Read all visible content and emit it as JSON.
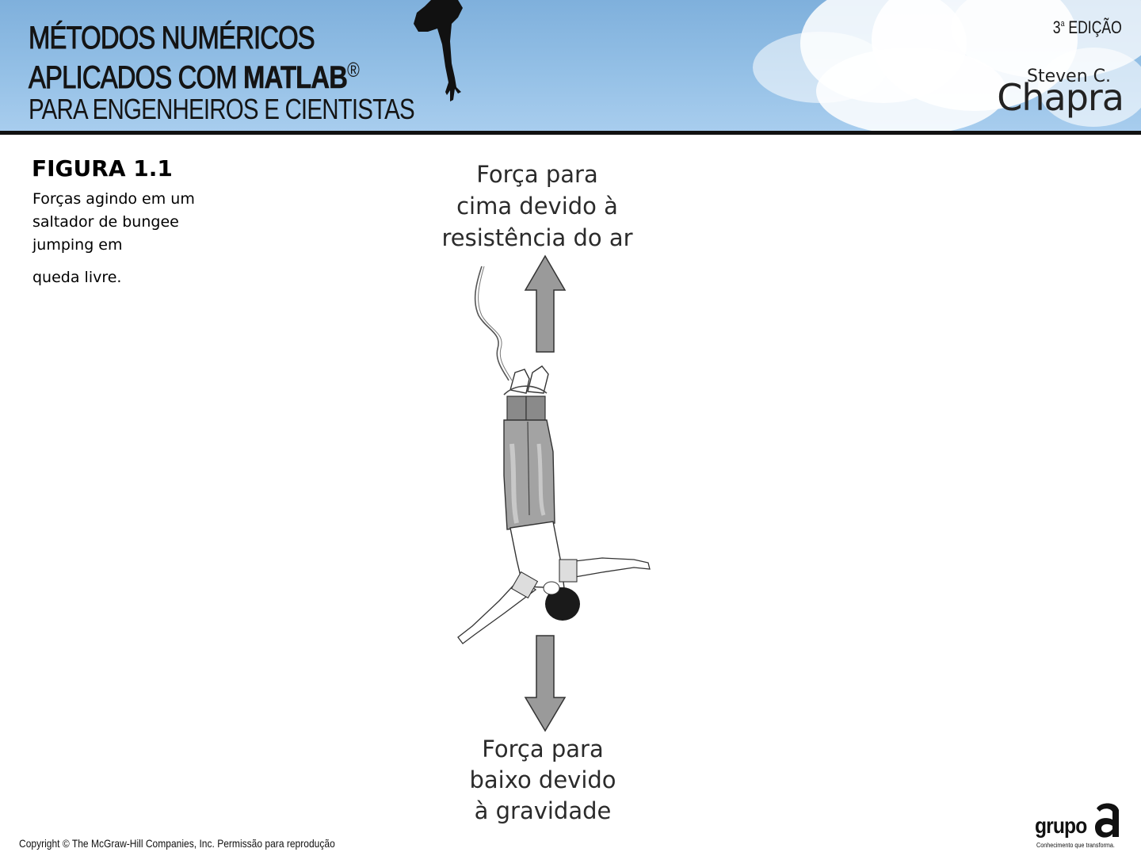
{
  "header": {
    "title_line1": "MÉTODOS NUMÉRICOS",
    "title_line2_prefix": "APLICADOS COM ",
    "title_line2_bold": "MATLAB",
    "title_line2_mark": "®",
    "title_line3": "PARA ENGENHEIROS E CIENTISTAS",
    "edition_number": "3",
    "edition_superscript": "a",
    "edition_word": " EDIÇÃO",
    "author_first": "Steven C.",
    "author_last": "Chapra"
  },
  "figure": {
    "number": "FIGURA 1.1",
    "caption_main": "Forças agindo em um saltador de bungee jumping em",
    "caption_last": "queda livre.",
    "label_up_1": "Força para",
    "label_up_2": "cima devido à",
    "label_up_3": "resistência do ar",
    "label_down_1": "Força para",
    "label_down_2": "baixo devido",
    "label_down_3": "à gravidade"
  },
  "footer": {
    "copyright": "Copyright © The McGraw-Hill Companies, Inc. Permissão para reprodução",
    "logo_word": "grupo",
    "logo_letter": "a",
    "logo_tagline": "Conhecimento que transforma."
  },
  "colors": {
    "sky": "#94c0e6",
    "arrow_fill": "#9a9a9a",
    "arrow_stroke": "#333333",
    "pants": "#9c9c9c"
  },
  "icons": [
    "jumper-silhouette-icon",
    "up-arrow-icon",
    "down-arrow-icon",
    "bungee-jumper-illustration",
    "grupo-a-logo-icon"
  ]
}
